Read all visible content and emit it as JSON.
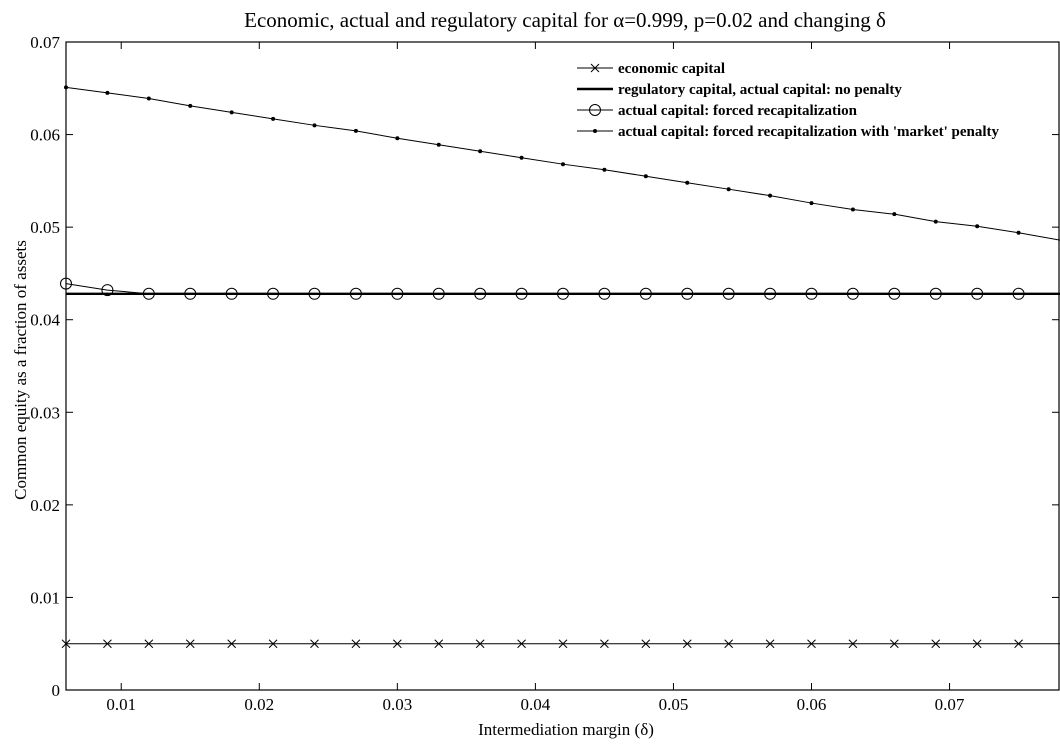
{
  "chart_data": {
    "type": "line",
    "title": "Economic, actual and regulatory capital for α=0.999, p=0.02 and changing δ",
    "xlabel": "Intermediation margin (δ)",
    "ylabel": "Common equity as a fraction of assets",
    "xlim": [
      0.006,
      0.078
    ],
    "ylim": [
      0,
      0.07
    ],
    "xticks": [
      "0.01",
      "0.02",
      "0.03",
      "0.04",
      "0.05",
      "0.06",
      "0.07"
    ],
    "yticks": [
      "0",
      "0.01",
      "0.02",
      "0.03",
      "0.04",
      "0.05",
      "0.06",
      "0.07"
    ],
    "grid": false,
    "legend_position": "top-right",
    "x": [
      0.006,
      0.009,
      0.012,
      0.015,
      0.018,
      0.021,
      0.024,
      0.027,
      0.03,
      0.033,
      0.036,
      0.039,
      0.042,
      0.045,
      0.048,
      0.051,
      0.054,
      0.057,
      0.06,
      0.063,
      0.066,
      0.069,
      0.072,
      0.075,
      0.078
    ],
    "series": [
      {
        "name": "economic capital",
        "marker": "x",
        "linewidth": "thin",
        "values": [
          0.005,
          0.005,
          0.005,
          0.005,
          0.005,
          0.005,
          0.005,
          0.005,
          0.005,
          0.005,
          0.005,
          0.005,
          0.005,
          0.005,
          0.005,
          0.005,
          0.005,
          0.005,
          0.005,
          0.005,
          0.005,
          0.005,
          0.005,
          0.005,
          0.005
        ]
      },
      {
        "name": "regulatory capital, actual capital: no penalty",
        "marker": "none",
        "linewidth": "thick",
        "values": [
          0.0428,
          0.0428,
          0.0428,
          0.0428,
          0.0428,
          0.0428,
          0.0428,
          0.0428,
          0.0428,
          0.0428,
          0.0428,
          0.0428,
          0.0428,
          0.0428,
          0.0428,
          0.0428,
          0.0428,
          0.0428,
          0.0428,
          0.0428,
          0.0428,
          0.0428,
          0.0428,
          0.0428,
          0.0428
        ]
      },
      {
        "name": "actual capital: forced recapitalization",
        "marker": "circle",
        "linewidth": "thin",
        "values": [
          0.0439,
          0.0432,
          0.0428,
          0.0428,
          0.0428,
          0.0428,
          0.0428,
          0.0428,
          0.0428,
          0.0428,
          0.0428,
          0.0428,
          0.0428,
          0.0428,
          0.0428,
          0.0428,
          0.0428,
          0.0428,
          0.0428,
          0.0428,
          0.0428,
          0.0428,
          0.0428,
          0.0428,
          0.0428
        ]
      },
      {
        "name": "actual capital: forced recapitalization with 'market' penalty",
        "marker": "dot",
        "linewidth": "thin",
        "values": [
          0.0651,
          0.0645,
          0.0639,
          0.0631,
          0.0624,
          0.0617,
          0.061,
          0.0604,
          0.0596,
          0.0589,
          0.0582,
          0.0575,
          0.0568,
          0.0562,
          0.0555,
          0.0548,
          0.0541,
          0.0534,
          0.0526,
          0.0519,
          0.0514,
          0.0506,
          0.0501,
          0.0494,
          0.0486
        ]
      }
    ]
  }
}
